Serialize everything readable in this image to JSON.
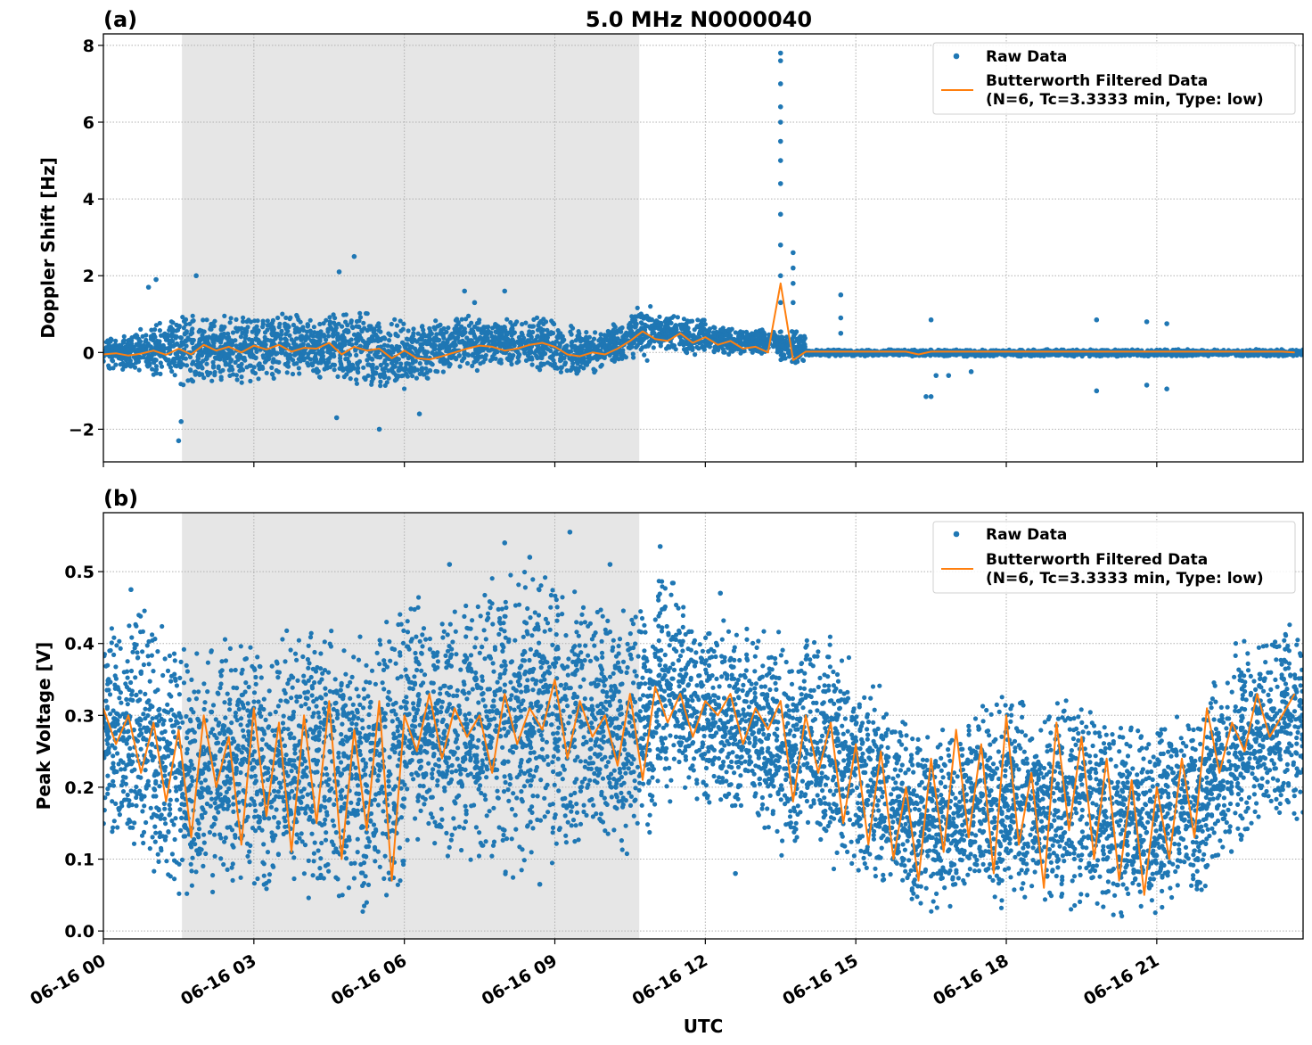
{
  "chart_data": [
    {
      "type": "scatter",
      "panel_label": "(a)",
      "title": "5.0 MHz N0000040",
      "xlabel": "",
      "ylabel": "Doppler Shift [Hz]",
      "xlim": [
        "06-16 00:00",
        "06-16 23:55"
      ],
      "ylim": [
        -2.85,
        8.3
      ],
      "yticks": [
        -2,
        0,
        2,
        4,
        6,
        8
      ],
      "ytick_labels": [
        "−2",
        "0",
        "2",
        "4",
        "6",
        "8"
      ],
      "grid": true,
      "legend_placement": "upper right",
      "shaded_span": [
        "06-16 01:34",
        "06-16 10:41"
      ],
      "shade_color": "#e6e6e6",
      "series": [
        {
          "name": "Raw Data",
          "kind": "scatter",
          "color": "#1f77b4",
          "band_bins_start": "06-16 00:00",
          "band_bins_minutes": 30,
          "band_low": [
            -0.5,
            -0.5,
            -0.6,
            -0.9,
            -0.8,
            -0.8,
            -0.7,
            -0.7,
            -0.7,
            -0.8,
            -0.9,
            -1.0,
            -0.8,
            -0.6,
            -0.5,
            -0.4,
            -0.4,
            -0.5,
            -0.6,
            -0.5,
            -0.3,
            -0.2,
            -0.05,
            -0.05,
            -0.05,
            -0.05,
            -0.05,
            -0.3,
            -0.1,
            -0.1,
            -0.1,
            -0.1,
            -0.1,
            -0.1,
            -0.1,
            -0.1,
            -0.1,
            -0.1,
            -0.1,
            -0.1,
            -0.1,
            -0.1,
            -0.1,
            -0.1,
            -0.1,
            -0.1,
            -0.1,
            -0.1
          ],
          "band_high": [
            0.5,
            0.6,
            0.9,
            1.1,
            1.0,
            1.0,
            1.0,
            1.0,
            0.9,
            1.1,
            1.1,
            0.9,
            0.8,
            0.9,
            1.0,
            0.9,
            0.9,
            0.9,
            0.7,
            0.6,
            0.8,
            1.2,
            1.0,
            0.9,
            0.7,
            0.6,
            0.6,
            0.6,
            0.08,
            0.08,
            0.08,
            0.08,
            0.08,
            0.08,
            0.08,
            0.08,
            0.08,
            0.08,
            0.08,
            0.08,
            0.08,
            0.08,
            0.08,
            0.08,
            0.08,
            0.08,
            0.08,
            0.08
          ],
          "outliers": [
            [
              "06-16 00:54",
              1.7
            ],
            [
              "06-16 01:03",
              1.9
            ],
            [
              "06-16 01:30",
              -2.3
            ],
            [
              "06-16 01:33",
              -1.8
            ],
            [
              "06-16 01:51",
              2.0
            ],
            [
              "06-16 04:42",
              2.1
            ],
            [
              "06-16 05:00",
              2.5
            ],
            [
              "06-16 04:39",
              -1.7
            ],
            [
              "06-16 05:30",
              -2.0
            ],
            [
              "06-16 06:18",
              -1.6
            ],
            [
              "06-16 07:12",
              1.6
            ],
            [
              "06-16 07:24",
              1.3
            ],
            [
              "06-16 08:00",
              1.6
            ],
            [
              "06-16 13:30",
              7.8
            ],
            [
              "06-16 13:30",
              7.6
            ],
            [
              "06-16 13:30",
              7.0
            ],
            [
              "06-16 13:30",
              6.4
            ],
            [
              "06-16 13:30",
              6.0
            ],
            [
              "06-16 13:30",
              5.5
            ],
            [
              "06-16 13:30",
              5.0
            ],
            [
              "06-16 13:30",
              4.4
            ],
            [
              "06-16 13:30",
              3.6
            ],
            [
              "06-16 13:30",
              2.8
            ],
            [
              "06-16 13:30",
              2.0
            ],
            [
              "06-16 13:30",
              1.3
            ],
            [
              "06-16 13:45",
              2.6
            ],
            [
              "06-16 13:45",
              2.2
            ],
            [
              "06-16 13:45",
              1.8
            ],
            [
              "06-16 13:45",
              1.3
            ],
            [
              "06-16 14:42",
              1.5
            ],
            [
              "06-16 14:42",
              0.9
            ],
            [
              "06-16 14:42",
              0.5
            ],
            [
              "06-16 16:24",
              -1.15
            ],
            [
              "06-16 16:30",
              -1.15
            ],
            [
              "06-16 16:30",
              0.85
            ],
            [
              "06-16 16:36",
              -0.6
            ],
            [
              "06-16 16:51",
              -0.6
            ],
            [
              "06-16 17:18",
              -0.5
            ],
            [
              "06-16 19:48",
              0.85
            ],
            [
              "06-16 19:48",
              -1.0
            ],
            [
              "06-16 20:48",
              0.8
            ],
            [
              "06-16 20:48",
              -0.85
            ],
            [
              "06-16 21:12",
              0.75
            ],
            [
              "06-16 21:12",
              -0.95
            ]
          ]
        },
        {
          "name": "Butterworth Filtered Data\n(N=6, Tc=3.3333 min, Type: low)",
          "kind": "line",
          "color": "#ff7f0e",
          "x_start": "06-16 00:00",
          "x_step_minutes": 15,
          "values": [
            -0.05,
            -0.02,
            -0.08,
            -0.03,
            0.05,
            -0.06,
            0.1,
            -0.05,
            0.2,
            0.05,
            0.15,
            0.0,
            0.18,
            0.08,
            0.2,
            0.02,
            0.12,
            0.1,
            0.25,
            -0.05,
            0.15,
            0.05,
            0.1,
            -0.15,
            0.05,
            -0.15,
            -0.18,
            -0.1,
            0.0,
            0.1,
            0.18,
            0.15,
            0.05,
            0.1,
            0.2,
            0.25,
            0.15,
            -0.05,
            -0.1,
            0.0,
            -0.05,
            0.1,
            0.3,
            0.55,
            0.35,
            0.3,
            0.5,
            0.25,
            0.4,
            0.2,
            0.3,
            0.1,
            0.15,
            0.0,
            1.8,
            -0.2,
            0.02,
            0.02,
            0.02,
            0.02,
            0.02,
            0.02,
            0.02,
            0.02,
            0.02,
            -0.05,
            0.02,
            0.02,
            0.02,
            0.02,
            0.02,
            0.02,
            0.02,
            0.02,
            0.02,
            0.02,
            0.02,
            0.02,
            0.02,
            0.02,
            0.02,
            0.02,
            0.02,
            0.02,
            0.02,
            0.02,
            0.02,
            0.02,
            0.02,
            0.02,
            0.02,
            0.02,
            0.02,
            0.02,
            0.02,
            0.0
          ]
        }
      ]
    },
    {
      "type": "scatter",
      "panel_label": "(b)",
      "xlabel": "UTC",
      "ylabel": "Peak Voltage [V]",
      "xlim": [
        "06-16 00:00",
        "06-16 23:55"
      ],
      "ylim": [
        -0.011,
        0.582
      ],
      "yticks": [
        0.0,
        0.1,
        0.2,
        0.3,
        0.4,
        0.5
      ],
      "ytick_labels": [
        "0.0",
        "0.1",
        "0.2",
        "0.3",
        "0.4",
        "0.5"
      ],
      "xticks": [
        "06-16 00:00",
        "06-16 03:00",
        "06-16 06:00",
        "06-16 09:00",
        "06-16 12:00",
        "06-16 15:00",
        "06-16 18:00",
        "06-16 21:00"
      ],
      "xtick_labels": [
        "06-16 00",
        "06-16 03",
        "06-16 06",
        "06-16 09",
        "06-16 12",
        "06-16 15",
        "06-16 18",
        "06-16 21"
      ],
      "grid": true,
      "legend_placement": "upper right",
      "shaded_span": [
        "06-16 01:34",
        "06-16 10:41"
      ],
      "shade_color": "#e6e6e6",
      "series": [
        {
          "name": "Raw Data",
          "kind": "scatter",
          "color": "#1f77b4",
          "band_bins_start": "06-16 00:00",
          "band_bins_minutes": 30,
          "band_low": [
            0.12,
            0.1,
            0.06,
            0.04,
            0.05,
            0.06,
            0.05,
            0.06,
            0.05,
            0.04,
            0.03,
            0.03,
            0.12,
            0.1,
            0.1,
            0.1,
            0.08,
            0.1,
            0.1,
            0.12,
            0.1,
            0.14,
            0.18,
            0.18,
            0.15,
            0.16,
            0.14,
            0.1,
            0.1,
            0.09,
            0.07,
            0.05,
            0.03,
            0.02,
            0.04,
            0.03,
            0.04,
            0.03,
            0.03,
            0.03,
            0.02,
            0.02,
            0.03,
            0.05,
            0.08,
            0.12,
            0.15,
            0.16
          ],
          "band_high": [
            0.44,
            0.45,
            0.42,
            0.4,
            0.4,
            0.41,
            0.4,
            0.42,
            0.43,
            0.43,
            0.42,
            0.46,
            0.47,
            0.46,
            0.47,
            0.5,
            0.5,
            0.5,
            0.48,
            0.48,
            0.45,
            0.46,
            0.5,
            0.45,
            0.44,
            0.43,
            0.42,
            0.4,
            0.42,
            0.38,
            0.35,
            0.32,
            0.28,
            0.3,
            0.31,
            0.32,
            0.33,
            0.3,
            0.33,
            0.32,
            0.3,
            0.28,
            0.3,
            0.32,
            0.35,
            0.4,
            0.42,
            0.44
          ],
          "outliers": [
            [
              "06-16 09:18",
              0.555
            ],
            [
              "06-16 08:00",
              0.54
            ],
            [
              "06-16 11:06",
              0.535
            ],
            [
              "06-16 00:33",
              0.475
            ],
            [
              "06-16 06:54",
              0.51
            ],
            [
              "06-16 10:06",
              0.51
            ],
            [
              "06-16 08:30",
              0.52
            ],
            [
              "06-16 12:18",
              0.47
            ],
            [
              "06-16 08:42",
              0.065
            ],
            [
              "06-16 12:36",
              0.08
            ]
          ]
        },
        {
          "name": "Butterworth Filtered Data\n(N=6, Tc=3.3333 min, Type: low)",
          "kind": "line",
          "color": "#ff7f0e",
          "x_start": "06-16 00:00",
          "x_step_minutes": 15,
          "values": [
            0.31,
            0.26,
            0.3,
            0.22,
            0.29,
            0.18,
            0.28,
            0.13,
            0.3,
            0.2,
            0.27,
            0.12,
            0.31,
            0.16,
            0.29,
            0.11,
            0.3,
            0.15,
            0.32,
            0.1,
            0.28,
            0.14,
            0.32,
            0.07,
            0.3,
            0.25,
            0.33,
            0.24,
            0.31,
            0.27,
            0.3,
            0.22,
            0.33,
            0.26,
            0.31,
            0.28,
            0.35,
            0.24,
            0.32,
            0.27,
            0.3,
            0.23,
            0.33,
            0.21,
            0.34,
            0.29,
            0.33,
            0.27,
            0.32,
            0.3,
            0.33,
            0.26,
            0.31,
            0.28,
            0.32,
            0.18,
            0.3,
            0.22,
            0.29,
            0.15,
            0.26,
            0.12,
            0.25,
            0.1,
            0.2,
            0.07,
            0.24,
            0.11,
            0.28,
            0.13,
            0.26,
            0.08,
            0.3,
            0.12,
            0.22,
            0.06,
            0.29,
            0.14,
            0.27,
            0.1,
            0.24,
            0.07,
            0.21,
            0.05,
            0.2,
            0.1,
            0.24,
            0.13,
            0.31,
            0.22,
            0.29,
            0.25,
            0.33,
            0.27,
            0.3,
            0.33
          ]
        }
      ]
    }
  ],
  "legend": {
    "raw_label": "Raw Data",
    "filtered_label_line1": "Butterworth Filtered Data",
    "filtered_label_line2": "(N=6, Tc=3.3333 min, Type: low)"
  }
}
